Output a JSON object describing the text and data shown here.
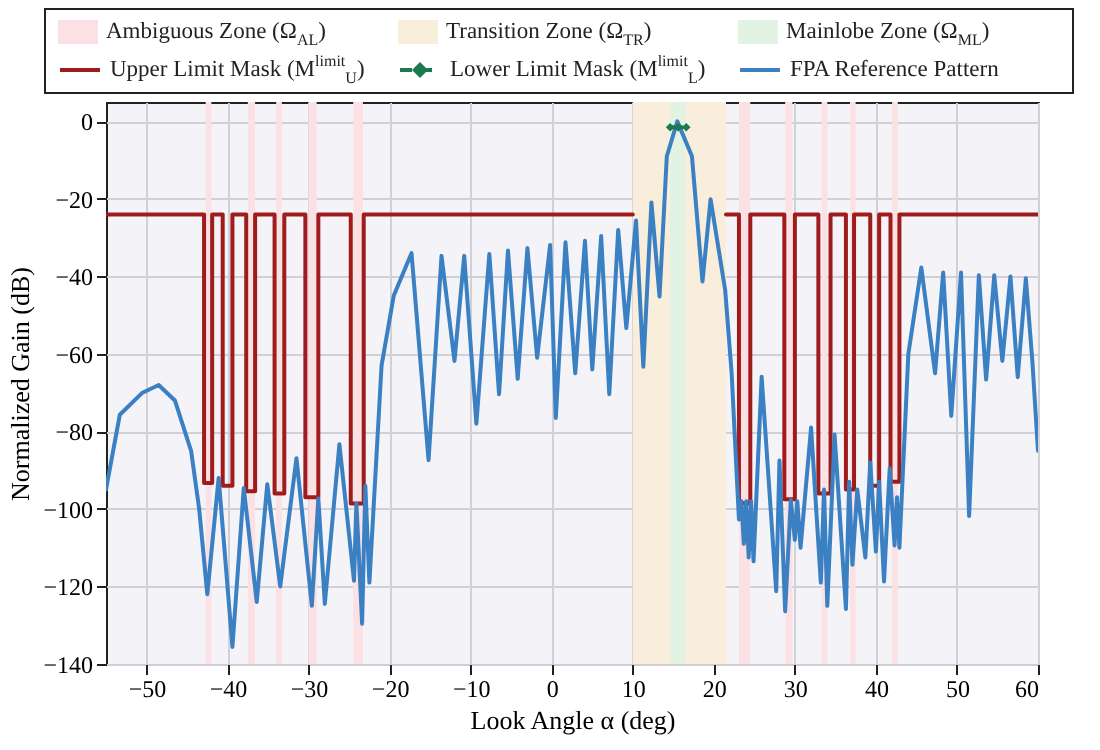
{
  "chart_data": {
    "type": "line",
    "xlabel": "Look Angle α (deg)",
    "ylabel": "Normalized Gain (dB)",
    "xlim": [
      -55,
      60
    ],
    "ylim": [
      -140,
      5
    ],
    "xticks": [
      -50,
      -40,
      -30,
      -20,
      -10,
      0,
      10,
      20,
      30,
      40,
      50,
      60
    ],
    "yticks": [
      -140,
      -120,
      -100,
      -80,
      -60,
      -40,
      -20,
      0
    ],
    "grid": true,
    "legend": "top",
    "bands": [
      {
        "axis": "x",
        "from": -42.7,
        "to": -42.0,
        "label": "Ambiguous Zone (Ω$_{AL}$)",
        "color": "#fbe1e4"
      },
      {
        "axis": "x",
        "from": -37.5,
        "to": -36.6,
        "color": "#fbe1e4"
      },
      {
        "axis": "x",
        "from": -34.0,
        "to": -33.3,
        "color": "#fbe1e4"
      },
      {
        "axis": "x",
        "from": -30.0,
        "to": -29.0,
        "color": "#fbe1e4"
      },
      {
        "axis": "x",
        "from": -24.5,
        "to": -23.3,
        "color": "#fbe1e4"
      },
      {
        "axis": "x",
        "from": 23.1,
        "to": 24.5,
        "color": "#fbe1e4"
      },
      {
        "axis": "x",
        "from": 28.8,
        "to": 29.7,
        "color": "#fbe1e4"
      },
      {
        "axis": "x",
        "from": 33.3,
        "to": 34.0,
        "color": "#fbe1e4"
      },
      {
        "axis": "x",
        "from": 36.8,
        "to": 37.5,
        "color": "#fbe1e4"
      },
      {
        "axis": "x",
        "from": 42.0,
        "to": 42.7,
        "color": "#fbe1e4"
      },
      {
        "axis": "x",
        "from": 10.0,
        "to": 21.5,
        "label": "Transition Zone (Ω$_{TR}$)",
        "color": "#f9eedb"
      },
      {
        "axis": "x",
        "from": 14.6,
        "to": 16.5,
        "label": "Mainlobe Zone (Ω$_{ML}$)",
        "color": "#e2f2e3"
      }
    ],
    "series": [
      {
        "name": "Upper Limit Mask (M$^{limit}$$_{U}$)",
        "color": "#a01c1c",
        "line_style": "solid",
        "marker": "none",
        "x": [
          -55,
          -42.9,
          -42.9,
          -41.9,
          -41.9,
          -40.6,
          -40.6,
          -39.4,
          -39.4,
          -37.7,
          -37.7,
          -36.6,
          -36.6,
          -34.2,
          -34.2,
          -33,
          -33,
          -30.4,
          -30.4,
          -28.8,
          -28.8,
          -24.8,
          -24.8,
          -23.2,
          -23.2,
          10,
          15,
          21.5,
          23.1,
          23.1,
          24.5,
          24.5,
          28.7,
          28.7,
          30,
          30,
          32.9,
          32.9,
          34.4,
          34.4,
          36.3,
          36.3,
          37.3,
          37.3,
          39.3,
          39.3,
          40.4,
          40.4,
          41.8,
          41.8,
          42.9,
          42.9,
          60
        ],
        "values": [
          -24,
          -24,
          -93.3,
          -93.3,
          -24,
          -24,
          -94,
          -94,
          -24,
          -24,
          -95.4,
          -95.4,
          -24,
          -24,
          -96,
          -96,
          -24,
          -24,
          -97,
          -97,
          -24,
          -24,
          -98.6,
          -98.6,
          -24,
          -24,
          null,
          -24,
          -24,
          -98.5,
          -98.5,
          -24,
          -24,
          -97.5,
          -97.5,
          -24,
          -24,
          -96,
          -96,
          -24,
          -24,
          -95,
          -95,
          -24,
          -24,
          -94,
          -94,
          -24,
          -24,
          -93,
          -93,
          -24,
          -24
        ]
      },
      {
        "name": "Lower Limit Mask (M$^{limit}$$_{L}$)",
        "color": "#1a7a50",
        "line_style": "dashed",
        "marker": "diamond",
        "x": [
          14.6,
          15.6,
          16.6
        ],
        "values": [
          -1.5,
          -1.5,
          -1.5
        ]
      },
      {
        "name": "FPA Reference Pattern",
        "color": "#3a80c2",
        "line_style": "solid",
        "marker": "none",
        "x": [
          -55,
          -53.3,
          -50.5,
          -48.5,
          -46.5,
          -44.5,
          -43.5,
          -42.5,
          -41.1,
          -39.4,
          -38,
          -36.4,
          -35.1,
          -33.5,
          -31.5,
          -29.6,
          -28.8,
          -28,
          -26.2,
          -24.4,
          -24.1,
          -23.4,
          -23,
          -22.5,
          -21,
          -19.5,
          -17.3,
          -15.2,
          -13.6,
          -12,
          -10.8,
          -9.3,
          -7.7,
          -6.5,
          -5.4,
          -4.2,
          -3,
          -1.8,
          -0.2,
          0.5,
          1.7,
          2.9,
          4.1,
          5,
          6.1,
          7.1,
          8.2,
          9.2,
          10.4,
          11.3,
          12.3,
          13.3,
          14.2,
          15.5,
          17.3,
          18.6,
          19.6,
          21.4,
          22.2,
          23.1,
          23.4,
          23.7,
          24,
          24.3,
          24.6,
          24.9,
          25.9,
          27.7,
          28.1,
          28.8,
          29.5,
          30,
          30.3,
          30.7,
          32,
          33.2,
          33.6,
          34,
          34.9,
          36.3,
          36.7,
          37.1,
          37.7,
          38.7,
          39.3,
          40,
          40.4,
          41,
          41.7,
          42.3,
          42.6,
          42.9,
          44,
          45.6,
          47.3,
          48.3,
          49.3,
          50.5,
          51.5,
          52.7,
          53.6,
          54.6,
          55.6,
          56.6,
          57.5,
          58.5,
          59.3,
          60
        ],
        "values": [
          -95,
          -75.7,
          -70,
          -68,
          -72,
          -85,
          -100,
          -122,
          -92,
          -135.6,
          -94.6,
          -124,
          -93.6,
          -120,
          -86.9,
          -125,
          -97.3,
          -124.5,
          -83.3,
          -118.5,
          -98.6,
          -129.6,
          -94,
          -119,
          -63,
          -45,
          -34,
          -87.4,
          -34.7,
          -61.8,
          -34.7,
          -78,
          -34.2,
          -70.4,
          -33.3,
          -66.4,
          -32.7,
          -61,
          -31.9,
          -76.5,
          -31.2,
          -65,
          -30.8,
          -64,
          -29.6,
          -70.4,
          -28,
          -53.3,
          -25.6,
          -63.3,
          -20.9,
          -45.2,
          -9,
          0,
          -9,
          -41.3,
          -20.1,
          -43.5,
          -65,
          -102.7,
          -98,
          -109,
          -98,
          -112.5,
          -98,
          -113.5,
          -65.9,
          -121.2,
          -87.5,
          -126.4,
          -97.7,
          -108,
          -98,
          -110,
          -79,
          -119,
          -95,
          -125,
          -80.8,
          -125.8,
          -93,
          -114.4,
          -95,
          -112.5,
          -88,
          -111,
          -93,
          -118.7,
          -89.5,
          -109.4,
          -97,
          -110,
          -60,
          -37.7,
          -65,
          -39,
          -76,
          -39,
          -101.8,
          -39.7,
          -66.6,
          -39.7,
          -61.8,
          -40,
          -66,
          -40.5,
          -61.8,
          -85
        ]
      }
    ]
  }
}
